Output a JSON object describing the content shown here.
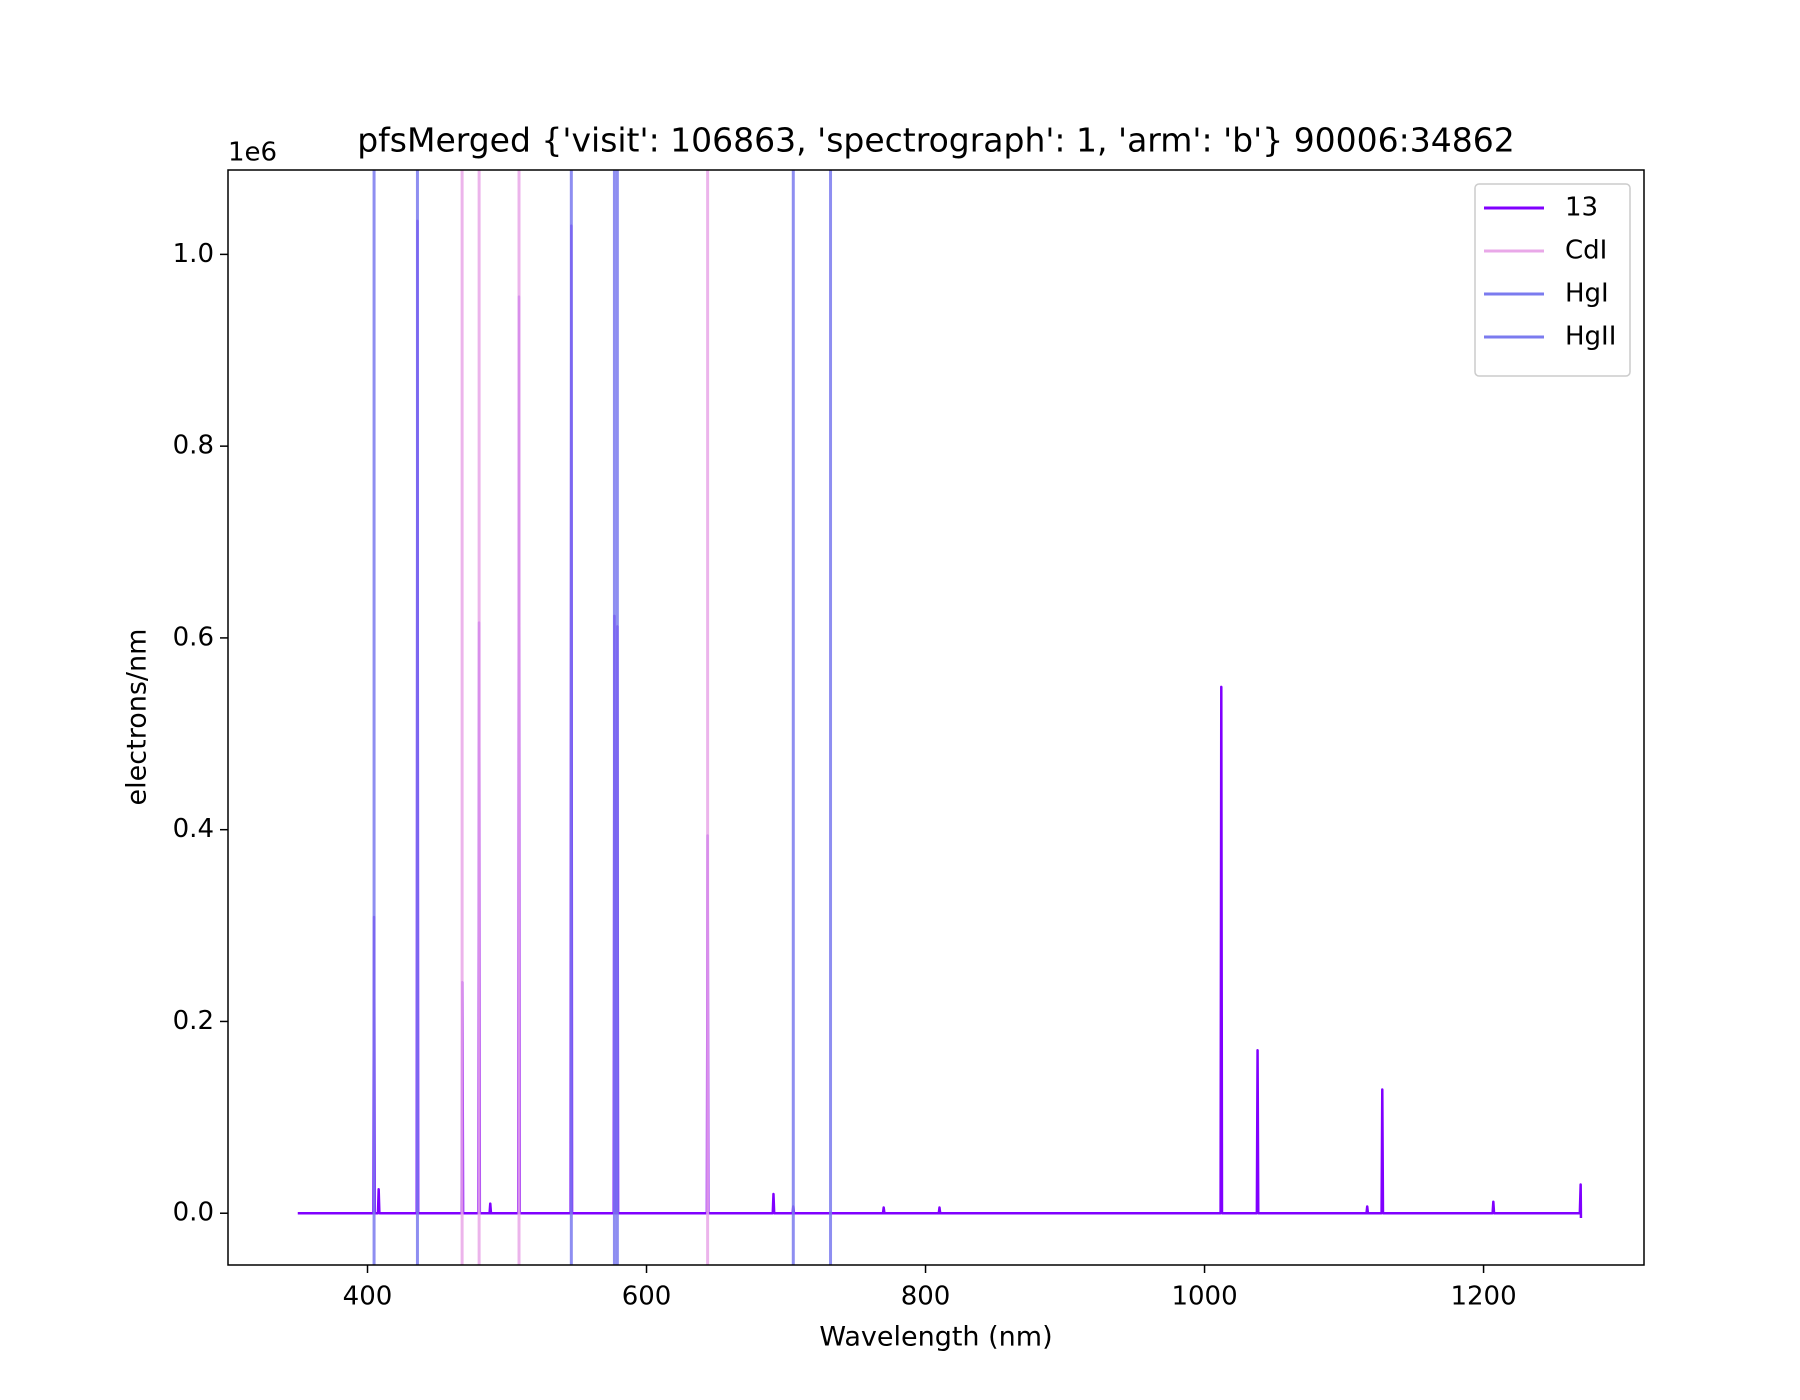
{
  "chart_data": {
    "type": "line",
    "title": "pfsMerged {'visit': 106863, 'spectrograph': 1, 'arm': 'b'} 90006:34862",
    "x_label": "Wavelength (nm)",
    "y_label": "electrons/nm",
    "y_offset_label": "1e6",
    "xlim": [
      300,
      1315
    ],
    "ylim": [
      -0.054,
      1.088
    ],
    "xticks": [
      400,
      600,
      800,
      1000,
      1200
    ],
    "yticks": [
      {
        "value": 0,
        "label": "0.0"
      },
      {
        "value": 0.2,
        "label": "0.2"
      },
      {
        "value": 0.4,
        "label": "0.4"
      },
      {
        "value": 0.6,
        "label": "0.6"
      },
      {
        "value": 0.8,
        "label": "0.8"
      },
      {
        "value": 1.0,
        "label": "1.0"
      }
    ],
    "legend": "upper right",
    "series": [
      {
        "name": "13",
        "color": "#8000ff",
        "x": [
          350,
          404.2,
          404.7,
          405.2,
          407.5,
          408,
          408.5,
          435.3,
          435.8,
          436.3,
          467.5,
          468,
          468.5,
          479.5,
          480,
          480.5,
          487.5,
          488,
          488.5,
          508.1,
          508.6,
          509.1,
          545.6,
          546.1,
          546.6,
          576.5,
          577,
          577.5,
          578.6,
          579.1,
          579.6,
          643.3,
          643.8,
          644.3,
          690.5,
          691,
          691.5,
          704.7,
          705.2,
          705.7,
          769.5,
          770,
          770.5,
          809.5,
          810,
          810.5,
          1011.5,
          1012,
          1012.5,
          1037.5,
          1038,
          1038.5,
          1116.1,
          1116.6,
          1117.1,
          1126.9,
          1127.4,
          1127.9,
          1206.5,
          1207,
          1207.5,
          1269,
          1269.6,
          1269.8
        ],
        "values": [
          0,
          0,
          0.309,
          0,
          0,
          0.025,
          0,
          0,
          1.035,
          0,
          0,
          0.241,
          0,
          0,
          0.616,
          0,
          0,
          0.01,
          0,
          0,
          0.956,
          0,
          0,
          1.03,
          0,
          0,
          0.623,
          0,
          0,
          0.612,
          0,
          0,
          0.394,
          0,
          0,
          0.02,
          0,
          0,
          0.007,
          0,
          0,
          0.006,
          0,
          0,
          0.006,
          0,
          0,
          0.549,
          0,
          0,
          0.17,
          0,
          0,
          0.007,
          0,
          0,
          0.129,
          0,
          0,
          0.012,
          0,
          0,
          0.03,
          -0.005
        ]
      },
      {
        "name": "CdI",
        "color": "#e9a8e8",
        "lines": [
          467.8,
          480.0,
          508.6,
          643.8
        ]
      },
      {
        "name": "HgI",
        "color": "#7b7bef",
        "lines": [
          404.7,
          435.8,
          546.1,
          577.0,
          579.1
        ]
      },
      {
        "name": "HgII",
        "color": "#7b7bef",
        "lines": [
          705.2,
          731.9
        ]
      }
    ]
  }
}
